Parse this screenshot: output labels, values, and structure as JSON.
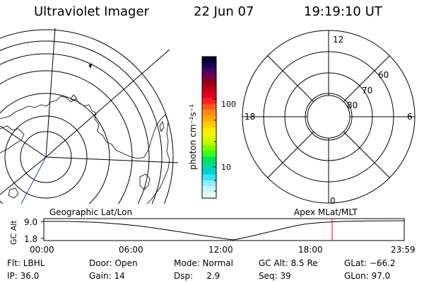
{
  "header": {
    "app_title": "Ultraviolet Imager",
    "date": "22 Jun 07",
    "time": "19:19:10 UT"
  },
  "left_panel": {
    "label": "Geographic Lat/Lon"
  },
  "right_panel": {
    "label": "Apex MLat/MLT",
    "mlt_labels": {
      "top": "12",
      "left": "18",
      "right": "6",
      "bottom": "0"
    },
    "lat_labels": [
      "60",
      "70",
      "80"
    ]
  },
  "colorbar": {
    "unit_label": "photon cm⁻²s⁻¹",
    "ticks": [
      "100",
      "10"
    ],
    "colors": [
      "#000033",
      "#1a0050",
      "#4b0060",
      "#7a003a",
      "#9b0018",
      "#c0001a",
      "#e0001e",
      "#ff2020",
      "#ff5a1a",
      "#ff8c10",
      "#ffaa00",
      "#ffcc00",
      "#ffee00",
      "#e8f800",
      "#c0ff00",
      "#7cff00",
      "#30ff20",
      "#00e060",
      "#00d8a0",
      "#00d0d8",
      "#40e0f0",
      "#90eef8",
      "#c8f4fb",
      "#ecfafd"
    ]
  },
  "altitude_plot": {
    "ylabel": "GC Alt",
    "y_ticks": [
      "9.0",
      "1.8"
    ],
    "x_ticks": [
      "00:00",
      "06:00",
      "12:00",
      "18:00",
      "23:59"
    ],
    "marker_color": "#ff0000"
  },
  "status": {
    "flt": "Flt: LBHL",
    "door": "Door: Open",
    "mode": "Mode: Normal",
    "gc_alt": "GC Alt: 8.5 Re",
    "glat": "GLat: −66.2",
    "ip": "IP: 36.0",
    "gain": "Gain: 14",
    "dsp": "Dsp:     2.9",
    "seq": "Seq: 39",
    "glon": "GLon: 97.0"
  }
}
